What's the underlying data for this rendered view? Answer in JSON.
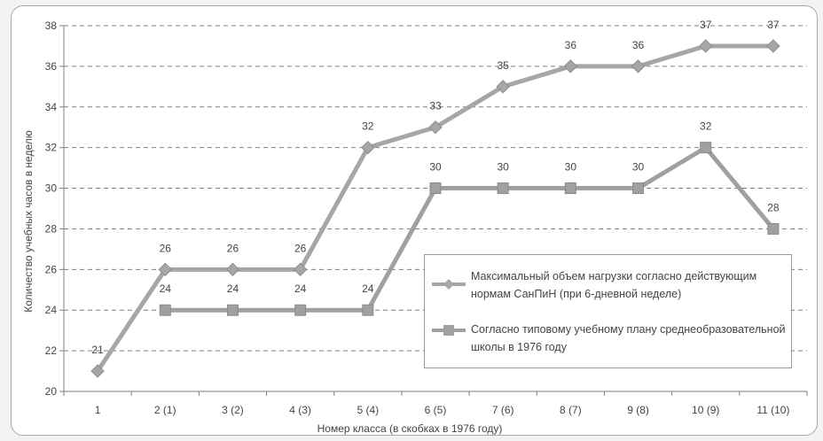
{
  "chart_data": {
    "type": "line",
    "title": "",
    "xlabel": "Номер класса (в скобках в 1976 году)",
    "ylabel": "Количество учебных часов в неделю",
    "categories": [
      "1",
      "2 (1)",
      "3 (2)",
      "4 (3)",
      "5 (4)",
      "6 (5)",
      "7 (6)",
      "8 (7)",
      "9 (8)",
      "10 (9)",
      "11 (10)"
    ],
    "ylim": [
      20,
      38
    ],
    "yticks": [
      "20",
      "22",
      "24",
      "26",
      "28",
      "30",
      "32",
      "34",
      "36",
      "38"
    ],
    "grid": true,
    "legend_position": "bottom-right",
    "series": [
      {
        "name": "Максимальный объем нагрузки согласно действующим нормам СанПиН (при 6-дневной неделе)",
        "marker": "diamond",
        "color": "#a6a6a6",
        "values": [
          21,
          26,
          26,
          26,
          32,
          33,
          35,
          36,
          36,
          37,
          37
        ],
        "labels": [
          "21",
          "26",
          "26",
          "26",
          "32",
          "33",
          "35",
          "36",
          "36",
          "37",
          "37"
        ]
      },
      {
        "name": "Согласно типовому учебному плану среднеобразовательной школы в 1976 году",
        "marker": "square",
        "color": "#a0a0a0",
        "values": [
          null,
          24,
          24,
          24,
          24,
          30,
          30,
          30,
          30,
          32,
          28
        ],
        "labels": [
          null,
          "24",
          "24",
          "24",
          "24",
          "30",
          "30",
          "30",
          "30",
          "32",
          "28"
        ]
      }
    ]
  },
  "legend": {
    "line1_a": "Максимальный объем нагрузки согласно действующим",
    "line1_b": "нормам СанПиН (при 6-дневной неделе)",
    "line2_a": "Согласно типовому учебному плану среднеобразовательной",
    "line2_b": "школы в 1976 году"
  }
}
